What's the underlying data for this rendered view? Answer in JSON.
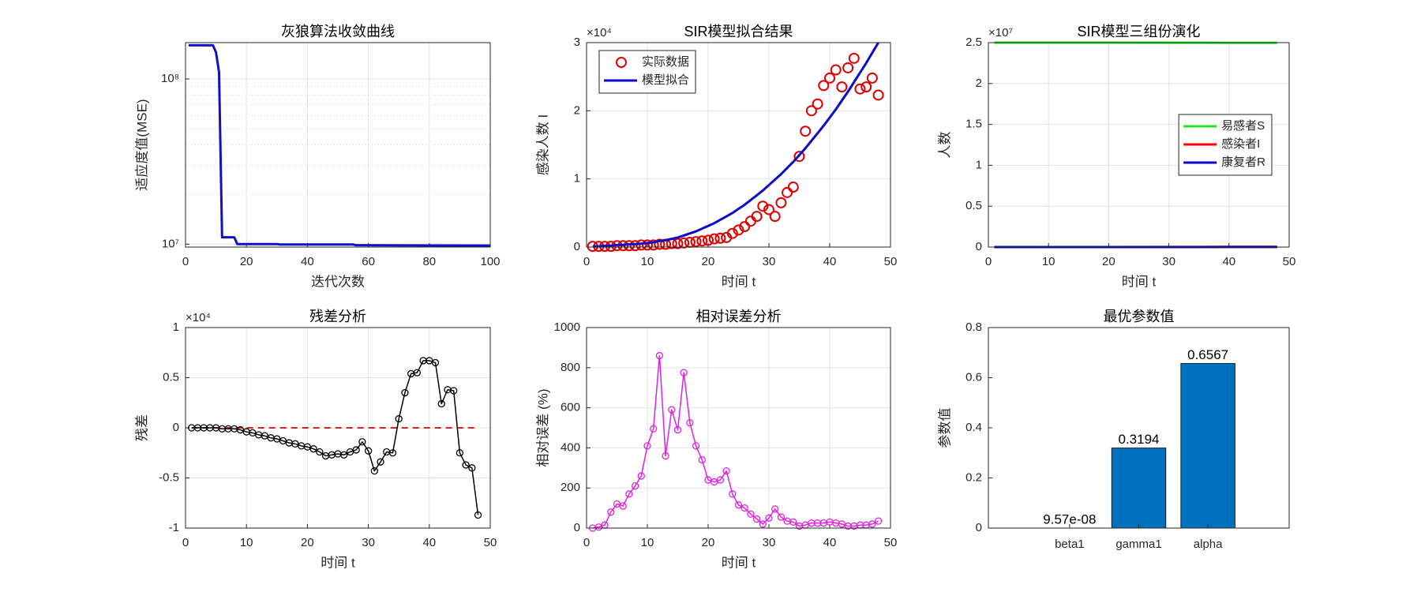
{
  "chart_data": [
    {
      "type": "line",
      "title": "灰狼算法收敛曲线",
      "xlabel": "迭代次数",
      "ylabel": "适应度值(MSE)",
      "x": [
        1,
        9,
        10,
        11,
        12,
        16,
        17,
        30,
        31,
        55,
        56,
        100
      ],
      "values": [
        160000000,
        160000000,
        145000000,
        110000000,
        11000000,
        11000000,
        10000000,
        10000000,
        9950000,
        9950000,
        9850000,
        9800000
      ],
      "color": "#1010c8",
      "xlim": [
        0,
        100
      ],
      "xticks": [
        0,
        20,
        40,
        60,
        80,
        100
      ],
      "ylim": [
        9600000,
        166000000
      ],
      "y_scale": "log",
      "yticks": [
        {
          "value": 10000000,
          "label": "10⁷"
        },
        {
          "value": 100000000,
          "label": "10⁸"
        }
      ],
      "yminorticks": [
        20000000,
        30000000,
        40000000,
        50000000,
        60000000,
        70000000,
        80000000,
        90000000
      ],
      "grid": true
    },
    {
      "type": "line",
      "title": "SIR模型拟合结果",
      "xlabel": "时间 t",
      "ylabel": "感染人数 I",
      "y_exponent": "×10⁴",
      "x": [
        1,
        2,
        3,
        4,
        5,
        6,
        7,
        8,
        9,
        10,
        11,
        12,
        13,
        14,
        15,
        16,
        17,
        18,
        19,
        20,
        21,
        22,
        23,
        24,
        25,
        26,
        27,
        28,
        29,
        30,
        31,
        32,
        33,
        34,
        35,
        36,
        37,
        38,
        39,
        40,
        41,
        42,
        43,
        44,
        45,
        46,
        47,
        48
      ],
      "series": [
        {
          "name": "实际数据",
          "color": "#dd0000",
          "marker": "o",
          "line": false,
          "values": [
            0.01,
            0.01,
            0.01,
            0.01,
            0.02,
            0.02,
            0.02,
            0.02,
            0.03,
            0.03,
            0.03,
            0.04,
            0.04,
            0.05,
            0.05,
            0.06,
            0.07,
            0.08,
            0.09,
            0.1,
            0.12,
            0.13,
            0.14,
            0.2,
            0.25,
            0.3,
            0.38,
            0.45,
            0.6,
            0.55,
            0.45,
            0.65,
            0.8,
            0.88,
            1.33,
            1.7,
            2.0,
            2.1,
            2.37,
            2.48,
            2.6,
            2.35,
            2.63,
            2.77,
            2.32,
            2.35,
            2.48,
            2.23
          ]
        },
        {
          "name": "模型拟合",
          "color": "#0a0ac8",
          "values": [
            0.01,
            0.01,
            0.02,
            0.02,
            0.03,
            0.03,
            0.04,
            0.04,
            0.05,
            0.06,
            0.07,
            0.09,
            0.1,
            0.12,
            0.14,
            0.17,
            0.2,
            0.23,
            0.27,
            0.31,
            0.35,
            0.4,
            0.45,
            0.5,
            0.56,
            0.62,
            0.69,
            0.76,
            0.83,
            0.91,
            0.99,
            1.07,
            1.16,
            1.25,
            1.35,
            1.45,
            1.56,
            1.67,
            1.78,
            1.9,
            2.02,
            2.15,
            2.28,
            2.42,
            2.56,
            2.7,
            2.85,
            3.0
          ]
        }
      ],
      "xlim": [
        0,
        50
      ],
      "xticks": [
        0,
        10,
        20,
        30,
        40,
        50
      ],
      "ylim": [
        0,
        3
      ],
      "yticks": [
        0,
        1,
        2,
        3
      ],
      "grid": true,
      "legend": "upper left"
    },
    {
      "type": "line",
      "title": "SIR模型三组份演化",
      "xlabel": "时间 t",
      "ylabel": "人数",
      "y_exponent": "×10⁷",
      "x": [
        1,
        10,
        20,
        30,
        40,
        48
      ],
      "series": [
        {
          "name": "易感者S",
          "color": "#1ee61e",
          "values": [
            2.5,
            2.5,
            2.5,
            2.499,
            2.498,
            2.497
          ]
        },
        {
          "name": "感染者I",
          "color": "#ff0000",
          "values": [
            0,
            0,
            0,
            0.001,
            0.002,
            0.002
          ]
        },
        {
          "name": "康复者R",
          "color": "#0a0ac8",
          "values": [
            0,
            0,
            0,
            0,
            0.001,
            0.001
          ]
        }
      ],
      "xlim": [
        0,
        50
      ],
      "xticks": [
        0,
        10,
        20,
        30,
        40,
        50
      ],
      "ylim": [
        0,
        2.5
      ],
      "yticks": [
        0,
        0.5,
        1,
        1.5,
        2,
        2.5
      ],
      "grid": true,
      "legend": "right"
    },
    {
      "type": "line",
      "title": "残差分析",
      "xlabel": "时间 t",
      "ylabel": "残差",
      "y_exponent": "×10⁴",
      "x": [
        1,
        2,
        3,
        4,
        5,
        6,
        7,
        8,
        9,
        10,
        11,
        12,
        13,
        14,
        15,
        16,
        17,
        18,
        19,
        20,
        21,
        22,
        23,
        24,
        25,
        26,
        27,
        28,
        29,
        30,
        31,
        32,
        33,
        34,
        35,
        36,
        37,
        38,
        39,
        40,
        41,
        42,
        43,
        44,
        45,
        46,
        47,
        48
      ],
      "values": [
        0,
        0,
        0,
        0,
        0,
        -0.01,
        -0.01,
        -0.01,
        -0.02,
        -0.04,
        -0.05,
        -0.07,
        -0.08,
        -0.1,
        -0.11,
        -0.13,
        -0.15,
        -0.16,
        -0.18,
        -0.19,
        -0.21,
        -0.24,
        -0.28,
        -0.27,
        -0.26,
        -0.27,
        -0.24,
        -0.22,
        -0.14,
        -0.23,
        -0.43,
        -0.34,
        -0.24,
        -0.25,
        0.09,
        0.35,
        0.54,
        0.55,
        0.67,
        0.67,
        0.65,
        0.24,
        0.38,
        0.37,
        -0.25,
        -0.37,
        -0.4,
        -0.87
      ],
      "color": "#000000",
      "marker": "o",
      "hline": {
        "value": 0,
        "color": "#e02020"
      },
      "xlim": [
        0,
        50
      ],
      "xticks": [
        0,
        10,
        20,
        30,
        40,
        50
      ],
      "ylim": [
        -1,
        1
      ],
      "yticks": [
        -1,
        -0.5,
        0,
        0.5,
        1
      ],
      "grid": true
    },
    {
      "type": "line",
      "title": "相对误差分析",
      "xlabel": "时间 t",
      "ylabel": "相对误差 (%)",
      "x": [
        1,
        2,
        3,
        4,
        5,
        6,
        7,
        8,
        9,
        10,
        11,
        12,
        13,
        14,
        15,
        16,
        17,
        18,
        19,
        20,
        21,
        22,
        23,
        24,
        25,
        26,
        27,
        28,
        29,
        30,
        31,
        32,
        33,
        34,
        35,
        36,
        37,
        38,
        39,
        40,
        41,
        42,
        43,
        44,
        45,
        46,
        47,
        48
      ],
      "values": [
        0,
        5,
        15,
        80,
        120,
        110,
        170,
        210,
        260,
        410,
        495,
        860,
        360,
        590,
        490,
        775,
        525,
        410,
        340,
        240,
        230,
        240,
        285,
        170,
        115,
        100,
        70,
        45,
        20,
        50,
        95,
        55,
        35,
        30,
        10,
        15,
        25,
        25,
        25,
        30,
        25,
        20,
        10,
        10,
        15,
        15,
        20,
        35
      ],
      "color": "#e020e0",
      "marker": "o",
      "xlim": [
        0,
        50
      ],
      "xticks": [
        0,
        10,
        20,
        30,
        40,
        50
      ],
      "ylim": [
        0,
        1000
      ],
      "yticks": [
        0,
        200,
        400,
        600,
        800,
        1000
      ],
      "grid": true
    },
    {
      "type": "bar",
      "title": "最优参数值",
      "ylabel": "参数值",
      "categories": [
        "beta1",
        "gamma1",
        "alpha"
      ],
      "values": [
        9.57e-08,
        0.3194,
        0.6567
      ],
      "value_labels": [
        "9.57e-08",
        "0.3194",
        "0.6567"
      ],
      "color": "#0072bd",
      "ylim": [
        0,
        0.8
      ],
      "yticks": [
        0,
        0.2,
        0.4,
        0.6,
        0.8
      ],
      "grid": false
    }
  ]
}
